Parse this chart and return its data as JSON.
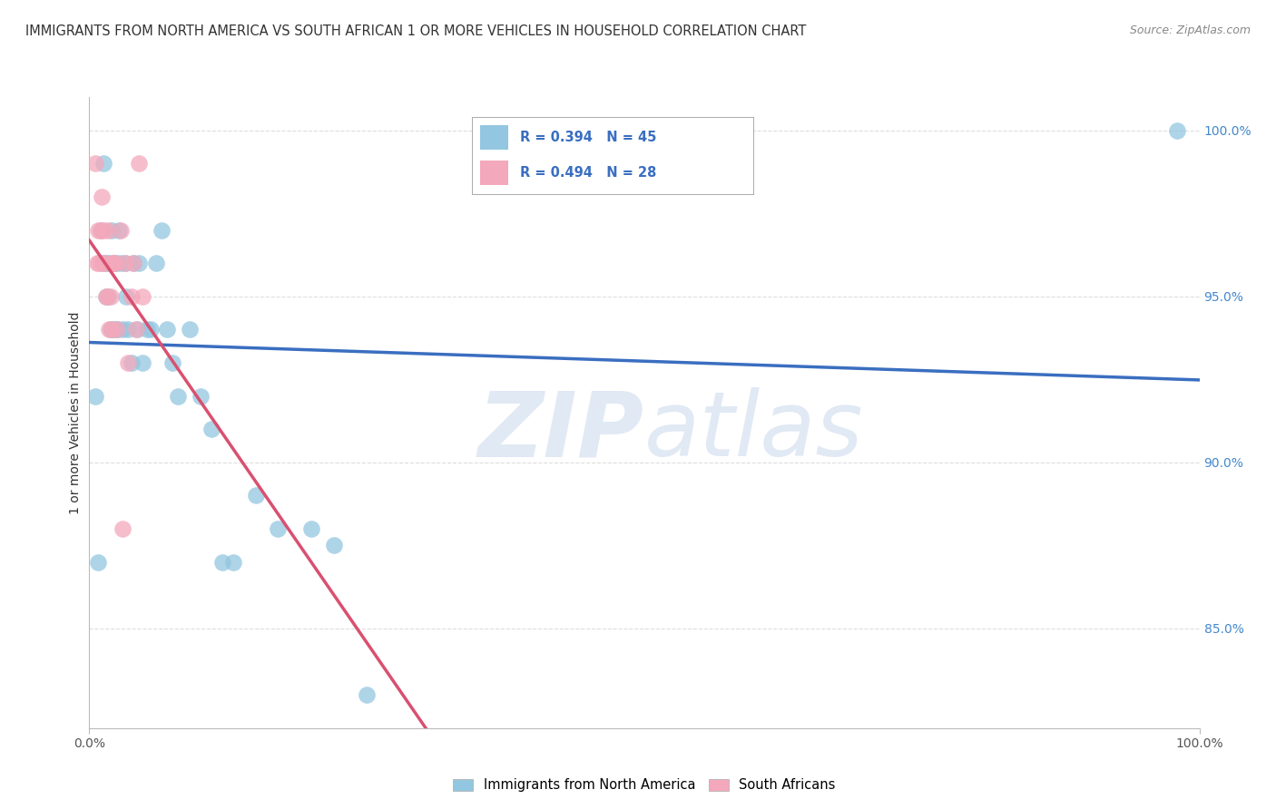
{
  "title": "IMMIGRANTS FROM NORTH AMERICA VS SOUTH AFRICAN 1 OR MORE VEHICLES IN HOUSEHOLD CORRELATION CHART",
  "source": "Source: ZipAtlas.com",
  "ylabel": "1 or more Vehicles in Household",
  "xlim": [
    0.0,
    1.0
  ],
  "ylim": [
    0.82,
    1.01
  ],
  "y_ticks": [
    0.85,
    0.9,
    0.95,
    1.0
  ],
  "y_tick_labels": [
    "85.0%",
    "90.0%",
    "95.0%",
    "100.0%"
  ],
  "x_ticks": [
    0.0,
    1.0
  ],
  "x_tick_labels": [
    "0.0%",
    "100.0%"
  ],
  "watermark_zip": "ZIP",
  "watermark_atlas": "atlas",
  "legend_label_blue": "Immigrants from North America",
  "legend_label_pink": "South Africans",
  "legend_text_blue": "R = 0.394   N = 45",
  "legend_text_pink": "R = 0.494   N = 28",
  "blue_color": "#93C6E0",
  "pink_color": "#F4A8BB",
  "line_blue_color": "#3A6EC0",
  "line_pink_color": "#D95070",
  "blue_scatter_x": [
    0.005,
    0.008,
    0.01,
    0.012,
    0.013,
    0.015,
    0.015,
    0.017,
    0.018,
    0.019,
    0.02,
    0.021,
    0.022,
    0.023,
    0.024,
    0.025,
    0.027,
    0.028,
    0.03,
    0.032,
    0.033,
    0.035,
    0.038,
    0.04,
    0.043,
    0.045,
    0.048,
    0.052,
    0.055,
    0.06,
    0.065,
    0.07,
    0.075,
    0.08,
    0.09,
    0.1,
    0.11,
    0.12,
    0.13,
    0.15,
    0.17,
    0.2,
    0.22,
    0.25,
    0.98
  ],
  "blue_scatter_y": [
    0.92,
    0.87,
    0.97,
    0.96,
    0.99,
    0.96,
    0.95,
    0.95,
    0.96,
    0.94,
    0.97,
    0.94,
    0.96,
    0.94,
    0.96,
    0.94,
    0.97,
    0.96,
    0.94,
    0.96,
    0.95,
    0.94,
    0.93,
    0.96,
    0.94,
    0.96,
    0.93,
    0.94,
    0.94,
    0.96,
    0.97,
    0.94,
    0.93,
    0.92,
    0.94,
    0.92,
    0.91,
    0.87,
    0.87,
    0.89,
    0.88,
    0.88,
    0.875,
    0.83,
    1.0
  ],
  "pink_scatter_x": [
    0.005,
    0.007,
    0.008,
    0.009,
    0.01,
    0.011,
    0.012,
    0.013,
    0.014,
    0.015,
    0.016,
    0.017,
    0.018,
    0.019,
    0.02,
    0.021,
    0.022,
    0.023,
    0.025,
    0.028,
    0.03,
    0.032,
    0.035,
    0.038,
    0.04,
    0.042,
    0.045,
    0.048
  ],
  "pink_scatter_y": [
    0.99,
    0.96,
    0.97,
    0.96,
    0.97,
    0.98,
    0.96,
    0.97,
    0.96,
    0.95,
    0.95,
    0.97,
    0.94,
    0.95,
    0.94,
    0.96,
    0.96,
    0.96,
    0.94,
    0.97,
    0.88,
    0.96,
    0.93,
    0.95,
    0.96,
    0.94,
    0.99,
    0.95
  ],
  "background_color": "#FFFFFF",
  "grid_color": "#DDDDDD"
}
